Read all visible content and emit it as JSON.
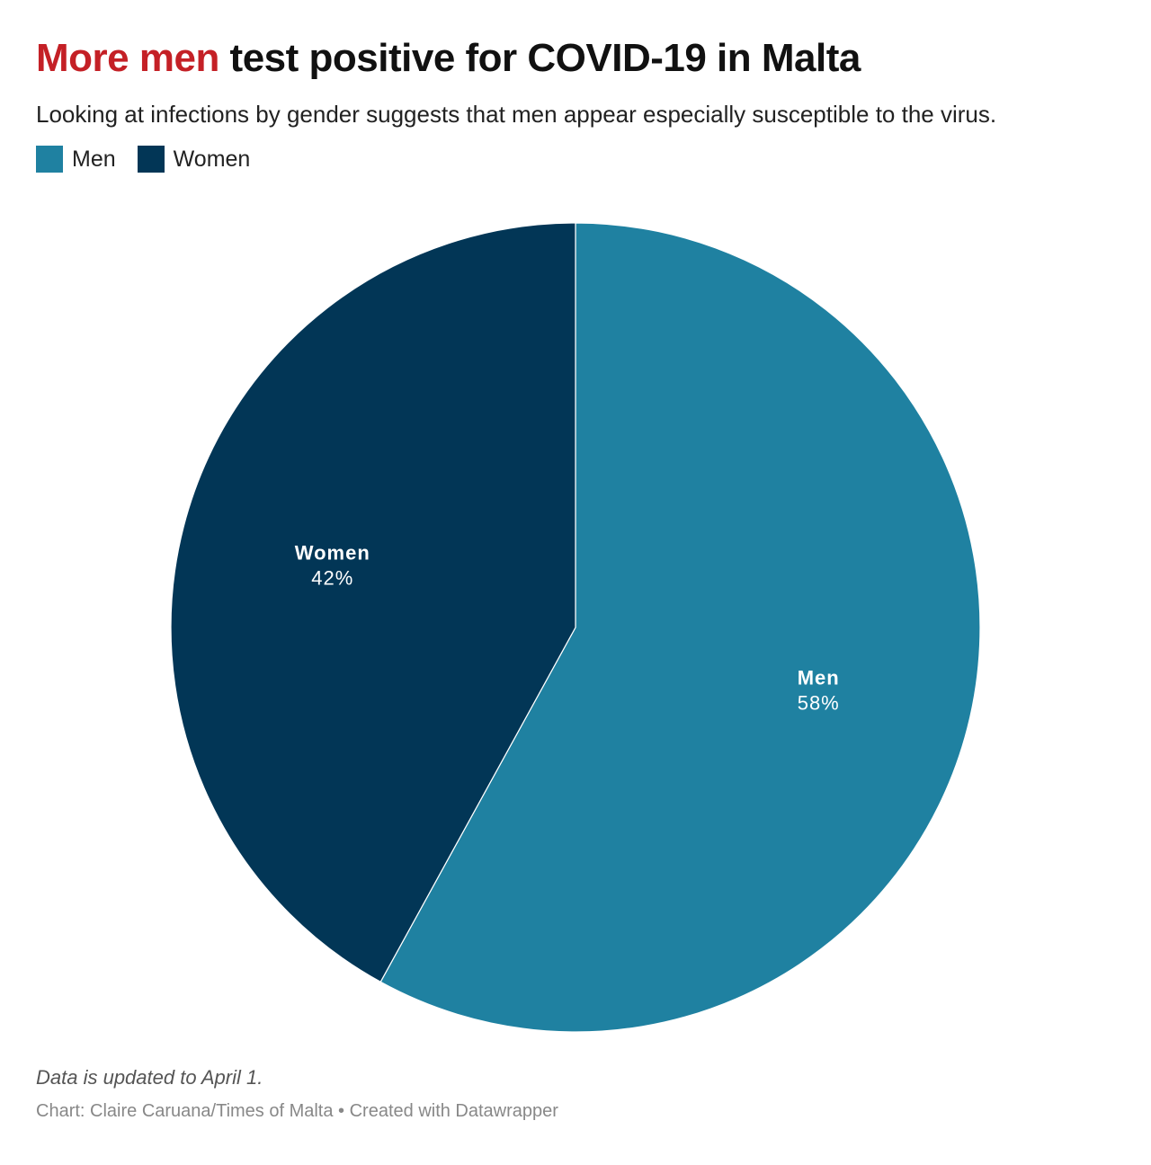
{
  "header": {
    "title_highlight": "More men",
    "title_rest": " test positive for COVID-19 in Malta",
    "subtitle": "Looking at infections by gender suggests that men appear especially susceptible to the virus."
  },
  "legend": [
    {
      "label": "Men",
      "color": "#1f81a1"
    },
    {
      "label": "Women",
      "color": "#023656"
    }
  ],
  "chart_data": {
    "type": "pie",
    "slices": [
      {
        "label": "Men",
        "value": 58,
        "value_label": "58%",
        "color": "#1f81a1"
      },
      {
        "label": "Women",
        "value": 42,
        "value_label": "42%",
        "color": "#023656"
      }
    ]
  },
  "footer": {
    "note": "Data is updated to April 1.",
    "credit": "Chart: Claire Caruana/Times of Malta • Created with Datawrapper"
  }
}
